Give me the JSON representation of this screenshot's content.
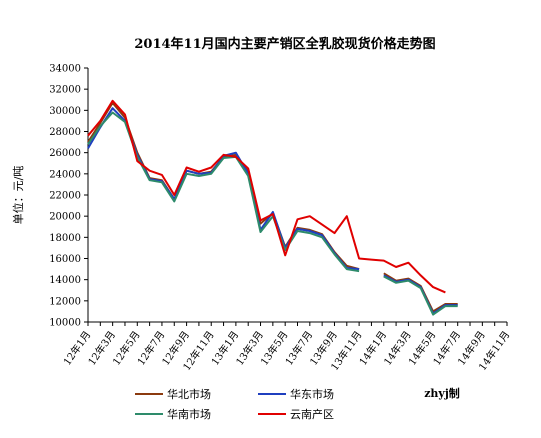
{
  "chart_data": {
    "type": "line",
    "title": "2014年11月国内主要产销区全乳胶现货价格走势图",
    "ylabel": "单位：元/吨",
    "xlabel": "",
    "ylim": [
      10000,
      34000
    ],
    "yticks": [
      10000,
      12000,
      14000,
      16000,
      18000,
      20000,
      22000,
      24000,
      26000,
      28000,
      30000,
      32000,
      34000
    ],
    "xtick_labels": [
      "12年1月",
      "12年3月",
      "12年5月",
      "12年7月",
      "12年9月",
      "12年11月",
      "13年1月",
      "13年3月",
      "13年5月",
      "13年7月",
      "13年9月",
      "13年11月",
      "14年1月",
      "14年3月",
      "14年5月",
      "14年7月",
      "14年9月",
      "14年11月"
    ],
    "x_months": [
      "2012-01",
      "2012-02",
      "2012-03",
      "2012-04",
      "2012-05",
      "2012-06",
      "2012-07",
      "2012-08",
      "2012-09",
      "2012-10",
      "2012-11",
      "2012-12",
      "2013-01",
      "2013-02",
      "2013-03",
      "2013-04",
      "2013-05",
      "2013-06",
      "2013-07",
      "2013-08",
      "2013-09",
      "2013-10",
      "2013-11",
      "2013-12",
      "2014-01",
      "2014-02",
      "2014-03",
      "2014-04",
      "2014-05",
      "2014-06",
      "2014-07",
      "2014-08",
      "2014-09",
      "2014-10",
      "2014-11"
    ],
    "series": [
      {
        "name": "华北市场",
        "color": "#8B3A0F",
        "values": [
          27000,
          28800,
          30700,
          29300,
          26000,
          23600,
          23400,
          21600,
          24300,
          24000,
          24200,
          25600,
          25800,
          24200,
          19300,
          20300,
          17100,
          18900,
          18700,
          18300,
          16600,
          15300,
          15000,
          null,
          14600,
          13900,
          14100,
          13400,
          11000,
          11700,
          11700,
          null,
          null,
          null,
          null
        ]
      },
      {
        "name": "华东市场",
        "color": "#1F3FBF",
        "values": [
          26400,
          28400,
          30200,
          29000,
          25800,
          23500,
          23300,
          21600,
          24300,
          24000,
          24100,
          25700,
          26000,
          24000,
          18700,
          20400,
          17000,
          18800,
          18600,
          18200,
          16500,
          15100,
          15000,
          null,
          14400,
          13800,
          14000,
          13300,
          10800,
          11600,
          11600,
          null,
          null,
          null,
          null
        ]
      },
      {
        "name": "华南市场",
        "color": "#2E8B6B",
        "values": [
          26800,
          28500,
          29800,
          28900,
          25600,
          23400,
          23200,
          21400,
          24000,
          23800,
          24000,
          25500,
          25600,
          23800,
          18500,
          20000,
          16800,
          18600,
          18400,
          18000,
          16400,
          15000,
          14800,
          null,
          14300,
          13700,
          13900,
          13200,
          10700,
          11500,
          11500,
          null,
          null,
          null,
          null
        ]
      },
      {
        "name": "云南产区",
        "color": "#E00000",
        "values": [
          27600,
          29000,
          30900,
          29600,
          25200,
          24300,
          23900,
          22000,
          24600,
          24200,
          24600,
          25800,
          25600,
          24500,
          19600,
          20200,
          16300,
          19700,
          20000,
          19200,
          18400,
          20000,
          16000,
          15900,
          15800,
          15200,
          15600,
          14400,
          13300,
          12800,
          null,
          null,
          null,
          null,
          null
        ]
      }
    ],
    "legend": [
      {
        "name": "华北市场",
        "color": "#8B3A0F"
      },
      {
        "name": "华东市场",
        "color": "#1F3FBF"
      },
      {
        "name": "华南市场",
        "color": "#2E8B6B"
      },
      {
        "name": "云南产区",
        "color": "#E00000"
      }
    ],
    "credit": "zhyj制",
    "grid": false,
    "legend_position": "bottom"
  }
}
